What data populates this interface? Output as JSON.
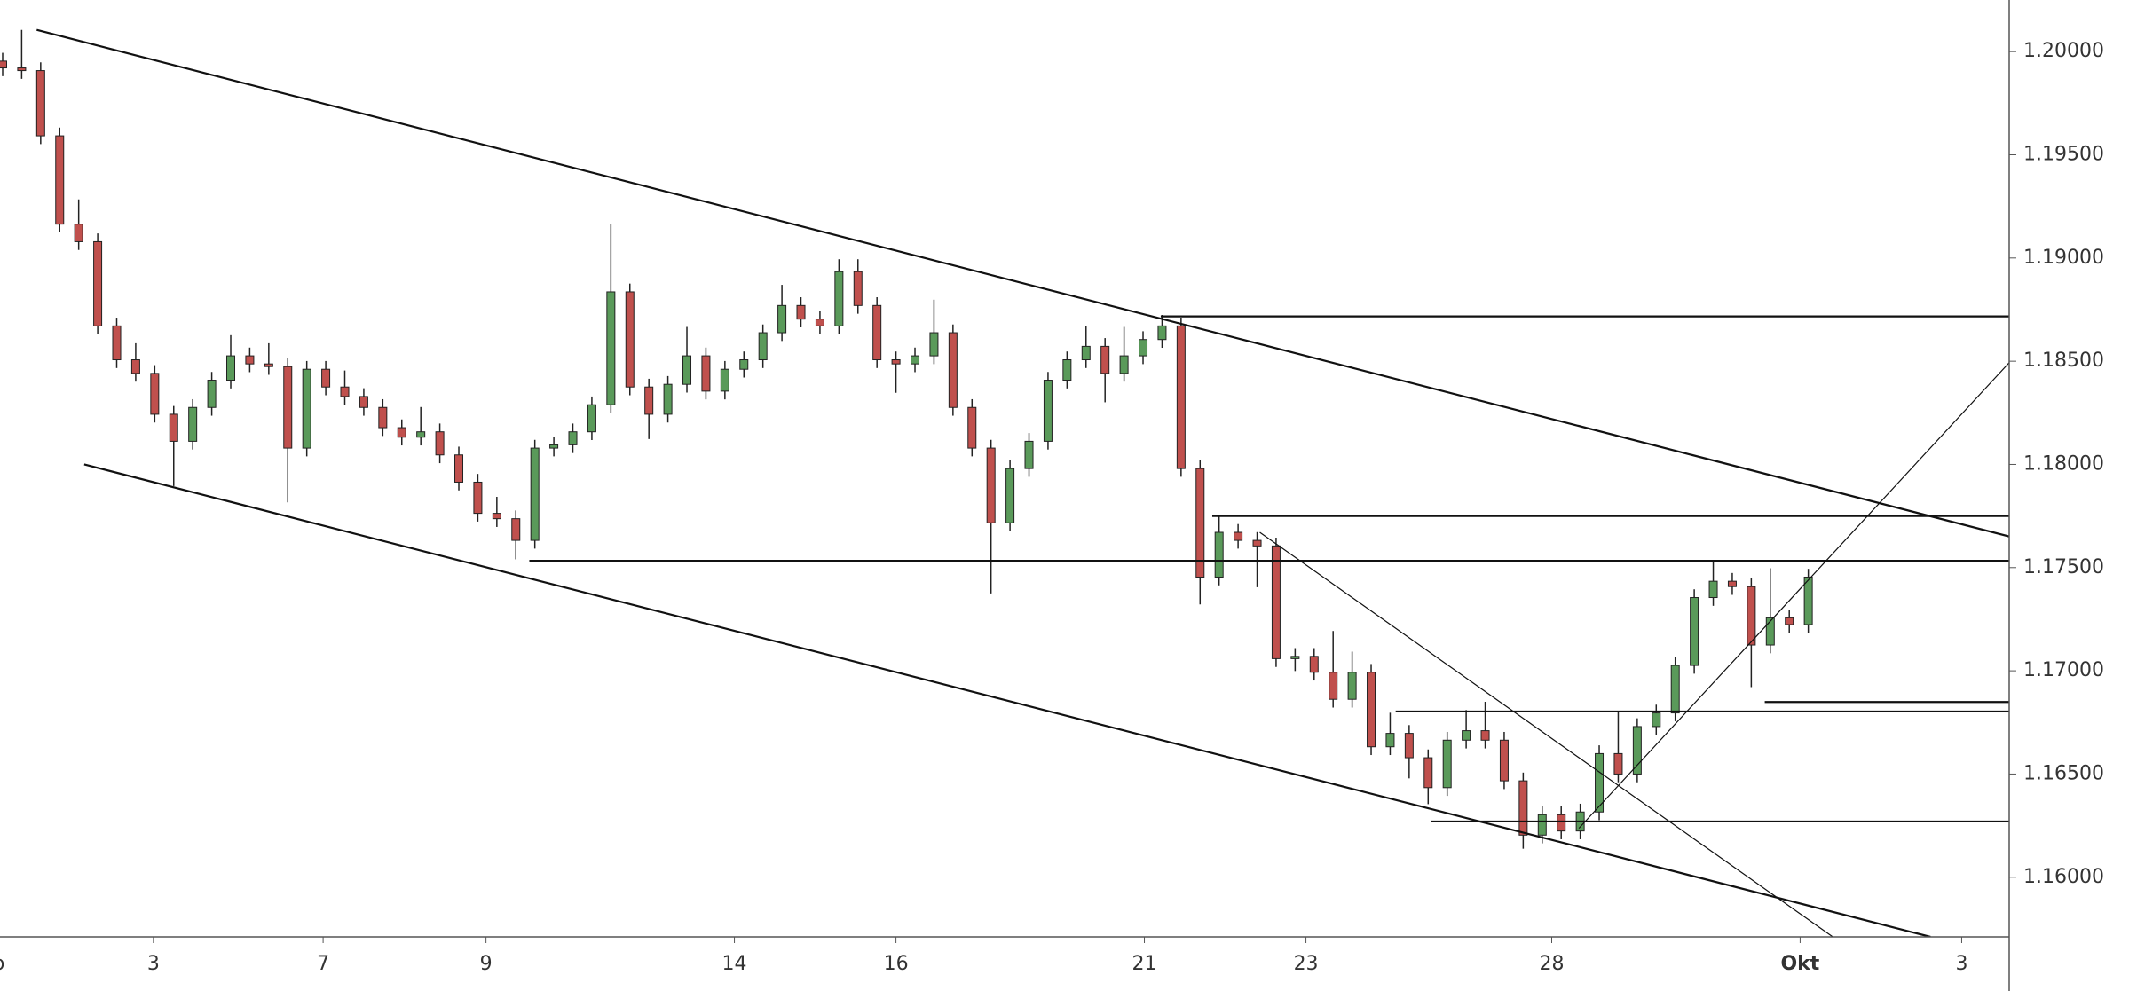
{
  "chart_data": {
    "type": "candlestick",
    "x": [
      0,
      1,
      2,
      3,
      4,
      5,
      6,
      7,
      8,
      9,
      10,
      11,
      12,
      13,
      14,
      15,
      16,
      17,
      18,
      19,
      20,
      21,
      22,
      23,
      24,
      25,
      26,
      27,
      28,
      29,
      30,
      31,
      32,
      33,
      34,
      35,
      36,
      37,
      38,
      39,
      40,
      41,
      42,
      43,
      44,
      45,
      46,
      47,
      48,
      49,
      50,
      51,
      52,
      53,
      54,
      55,
      56,
      57,
      58,
      59,
      60,
      61,
      62,
      63,
      64,
      65,
      66,
      67,
      68,
      69,
      70,
      71,
      72,
      73,
      74,
      75,
      76,
      77,
      78,
      79,
      80,
      81,
      82,
      83,
      84,
      85,
      86,
      87,
      88,
      89,
      90,
      91,
      92,
      93,
      94,
      95
    ],
    "open": [
      1.19954,
      1.19921,
      1.19908,
      1.19592,
      1.19164,
      1.19079,
      1.18671,
      1.18507,
      1.18441,
      1.18243,
      1.18112,
      1.18276,
      1.18408,
      1.18526,
      1.18487,
      1.18474,
      1.18079,
      1.18461,
      1.18375,
      1.18329,
      1.18276,
      1.18178,
      1.18132,
      1.18158,
      1.18046,
      1.17914,
      1.17763,
      1.17737,
      1.17632,
      1.18079,
      1.18095,
      1.18158,
      1.18289,
      1.18836,
      1.18375,
      1.18243,
      1.18388,
      1.18526,
      1.18355,
      1.18461,
      1.18507,
      1.18638,
      1.1877,
      1.18704,
      1.18671,
      1.18934,
      1.1877,
      1.18507,
      1.18487,
      1.18526,
      1.18638,
      1.18276,
      1.18079,
      1.17717,
      1.1798,
      1.18112,
      1.18408,
      1.18507,
      1.18572,
      1.18441,
      1.18526,
      1.18605,
      1.18671,
      1.1798,
      1.17454,
      1.17671,
      1.17632,
      1.17605,
      1.17059,
      1.1707,
      1.16993,
      1.16862,
      1.16993,
      1.16632,
      1.16697,
      1.16579,
      1.16434,
      1.16664,
      1.1671,
      1.16664,
      1.16467,
      1.16204,
      1.16303,
      1.16224,
      1.16316,
      1.16599,
      1.165,
      1.1673,
      1.16796,
      1.17026,
      1.17355,
      1.17434,
      1.17408,
      1.17125,
      1.17257,
      1.17224
    ],
    "high": [
      1.19994,
      1.20105,
      1.19948,
      1.19632,
      1.19284,
      1.19119,
      1.18711,
      1.18587,
      1.18481,
      1.18283,
      1.18316,
      1.18448,
      1.18626,
      1.18566,
      1.18587,
      1.18514,
      1.18501,
      1.18501,
      1.18455,
      1.18369,
      1.18316,
      1.18218,
      1.18278,
      1.18198,
      1.18086,
      1.17954,
      1.17843,
      1.17777,
      1.18119,
      1.18135,
      1.18198,
      1.18329,
      1.19164,
      1.18876,
      1.18415,
      1.18428,
      1.18666,
      1.18566,
      1.18501,
      1.18547,
      1.18678,
      1.1887,
      1.1881,
      1.18744,
      1.18994,
      1.18994,
      1.1881,
      1.18547,
      1.18566,
      1.18798,
      1.18678,
      1.18316,
      1.18119,
      1.1802,
      1.18152,
      1.18448,
      1.18547,
      1.18672,
      1.18612,
      1.18666,
      1.18645,
      1.18724,
      1.18711,
      1.1802,
      1.17751,
      1.17711,
      1.17672,
      1.17645,
      1.1711,
      1.1711,
      1.17193,
      1.17093,
      1.17033,
      1.16797,
      1.16737,
      1.16619,
      1.16704,
      1.1681,
      1.1685,
      1.16704,
      1.16507,
      1.16343,
      1.16343,
      1.16356,
      1.16639,
      1.16799,
      1.1677,
      1.16836,
      1.17066,
      1.17395,
      1.17534,
      1.17474,
      1.17448,
      1.17497,
      1.17297,
      1.17494
    ],
    "low": [
      1.19881,
      1.19868,
      1.19552,
      1.19124,
      1.19039,
      1.18631,
      1.18467,
      1.18401,
      1.18203,
      1.17895,
      1.18072,
      1.18236,
      1.18368,
      1.18447,
      1.18434,
      1.17816,
      1.18039,
      1.18335,
      1.18289,
      1.18236,
      1.18138,
      1.18092,
      1.18092,
      1.18006,
      1.17874,
      1.17723,
      1.17697,
      1.1754,
      1.17592,
      1.18039,
      1.18055,
      1.18118,
      1.18249,
      1.18335,
      1.18123,
      1.18203,
      1.18348,
      1.18315,
      1.18315,
      1.18421,
      1.18467,
      1.18598,
      1.18664,
      1.18631,
      1.18631,
      1.1873,
      1.18467,
      1.18347,
      1.18447,
      1.18486,
      1.18236,
      1.18039,
      1.17375,
      1.17677,
      1.1794,
      1.18072,
      1.18368,
      1.18467,
      1.18301,
      1.18401,
      1.18486,
      1.18565,
      1.1794,
      1.17322,
      1.17414,
      1.17592,
      1.17405,
      1.17019,
      1.16999,
      1.16953,
      1.16822,
      1.16822,
      1.16592,
      1.16592,
      1.16479,
      1.16354,
      1.16394,
      1.16624,
      1.16624,
      1.16427,
      1.16138,
      1.16164,
      1.16184,
      1.16184,
      1.16276,
      1.1646,
      1.1646,
      1.1669,
      1.16756,
      1.16986,
      1.17315,
      1.17368,
      1.16921,
      1.17085,
      1.17184,
      1.17184
    ],
    "close": [
      1.19921,
      1.19908,
      1.19592,
      1.19164,
      1.19079,
      1.18671,
      1.18507,
      1.18441,
      1.18243,
      1.18112,
      1.18276,
      1.18408,
      1.18526,
      1.18487,
      1.18474,
      1.18079,
      1.18461,
      1.18375,
      1.18329,
      1.18276,
      1.18178,
      1.18132,
      1.18158,
      1.18046,
      1.17914,
      1.17763,
      1.17737,
      1.17632,
      1.18079,
      1.18095,
      1.18158,
      1.18289,
      1.18836,
      1.18375,
      1.18243,
      1.18388,
      1.18526,
      1.18355,
      1.18461,
      1.18507,
      1.18638,
      1.1877,
      1.18704,
      1.18671,
      1.18934,
      1.1877,
      1.18507,
      1.18487,
      1.18526,
      1.18638,
      1.18276,
      1.18079,
      1.17717,
      1.1798,
      1.18112,
      1.18408,
      1.18507,
      1.18572,
      1.18441,
      1.18526,
      1.18605,
      1.18671,
      1.1798,
      1.17454,
      1.17671,
      1.17632,
      1.17605,
      1.17059,
      1.1707,
      1.16993,
      1.16862,
      1.16993,
      1.16632,
      1.16697,
      1.16579,
      1.16434,
      1.16664,
      1.1671,
      1.16664,
      1.16467,
      1.16204,
      1.16303,
      1.16224,
      1.16316,
      1.16599,
      1.165,
      1.1673,
      1.16796,
      1.17026,
      1.17355,
      1.17434,
      1.17408,
      1.17125,
      1.17257,
      1.17224,
      1.17454
    ],
    "up_color": "#5a9a5a",
    "down_color": "#c0504d",
    "xlim": [
      -0.14,
      105.57
    ],
    "xticks": [
      {
        "value": -0.86,
        "label": "Sep"
      },
      {
        "value": 7.93,
        "label": "3"
      },
      {
        "value": 16.86,
        "label": "7"
      },
      {
        "value": 25.43,
        "label": "9"
      },
      {
        "value": 38.5,
        "label": "14"
      },
      {
        "value": 47,
        "label": "16"
      },
      {
        "value": 60.07,
        "label": "21"
      },
      {
        "value": 68.57,
        "label": "23"
      },
      {
        "value": 81.5,
        "label": "28"
      },
      {
        "value": 94.57,
        "label": "Okt"
      },
      {
        "value": 103.07,
        "label": "3"
      }
    ],
    "ylim": [
      1.15711,
      1.2025
    ],
    "yticks": [
      {
        "value": 1.16,
        "label": "1.16000"
      },
      {
        "value": 1.165,
        "label": "1.16500"
      },
      {
        "value": 1.17,
        "label": "1.17000"
      },
      {
        "value": 1.175,
        "label": "1.17500"
      },
      {
        "value": 1.18,
        "label": "1.18000"
      },
      {
        "value": 1.185,
        "label": "1.18500"
      },
      {
        "value": 1.19,
        "label": "1.19000"
      },
      {
        "value": 1.195,
        "label": "1.19500"
      },
      {
        "value": 1.2,
        "label": "1.20000"
      }
    ],
    "lines": [
      {
        "x": [
          1.79,
          105.57
        ],
        "y": [
          1.20105,
          1.17651
        ]
      },
      {
        "x": [
          4.29,
          101.43
        ],
        "y": [
          1.18,
          1.15711
        ]
      },
      {
        "x": [
          60.93,
          105.57
        ],
        "y": [
          1.18717,
          1.18717
        ]
      },
      {
        "x": [
          63.64,
          105.57
        ],
        "y": [
          1.1775,
          1.1775
        ]
      },
      {
        "x": [
          27.71,
          105.57
        ],
        "y": [
          1.17533,
          1.17533
        ]
      },
      {
        "x": [
          92.71,
          105.57
        ],
        "y": [
          1.16849,
          1.16849
        ]
      },
      {
        "x": [
          73.29,
          105.57
        ],
        "y": [
          1.16803,
          1.16803
        ]
      },
      {
        "x": [
          75.14,
          105.57
        ],
        "y": [
          1.1627,
          1.1627
        ]
      }
    ],
    "thin_lines": [
      {
        "x": [
          66.14,
          96.29
        ],
        "y": [
          1.17671,
          1.15711
        ]
      },
      {
        "x": [
          82.93,
          105.57
        ],
        "y": [
          1.16237,
          1.18493
        ]
      }
    ]
  }
}
